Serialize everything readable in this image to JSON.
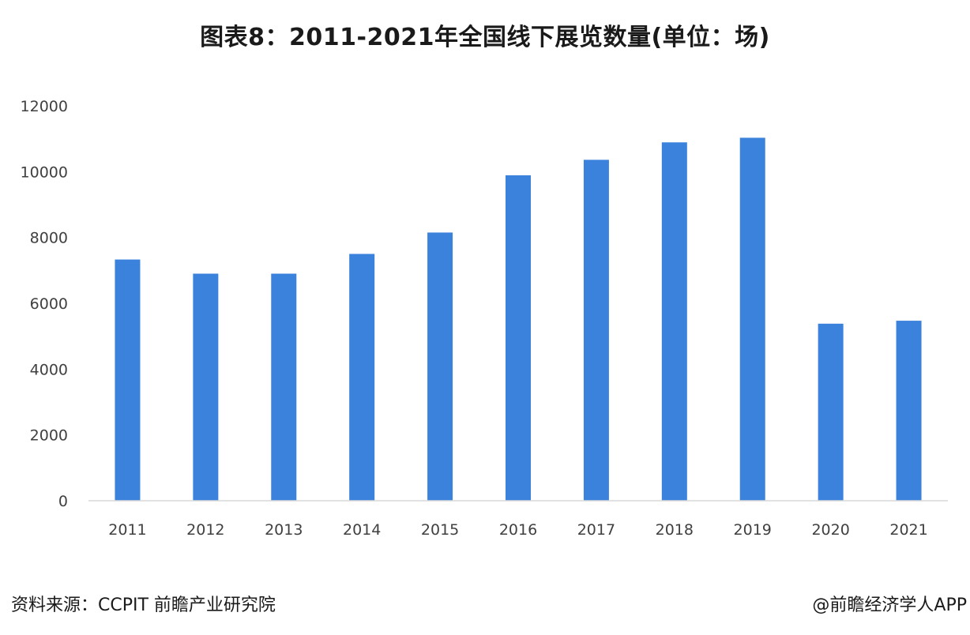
{
  "title": "图表8：2011-2021年全国线下展览数量(单位：场)",
  "footer": {
    "source": "资料来源：CCPIT 前瞻产业研究院",
    "credit": "@前瞻经济学人APP"
  },
  "colors": {
    "bar": "#3b82dc",
    "axis": "#d9d9d9",
    "tick_text": "#404040"
  },
  "chart_data": {
    "type": "bar",
    "title": "图表8：2011-2021年全国线下展览数量(单位：场)",
    "xlabel": "",
    "ylabel": "",
    "categories": [
      "2011",
      "2012",
      "2013",
      "2014",
      "2015",
      "2016",
      "2017",
      "2018",
      "2019",
      "2020",
      "2021"
    ],
    "values": [
      7330,
      6900,
      6900,
      7500,
      8150,
      9890,
      10360,
      10890,
      11030,
      5380,
      5470
    ],
    "ylim": [
      0,
      12000
    ],
    "yticks": [
      0,
      2000,
      4000,
      6000,
      8000,
      10000,
      12000
    ],
    "grid": false,
    "legend": "none"
  }
}
